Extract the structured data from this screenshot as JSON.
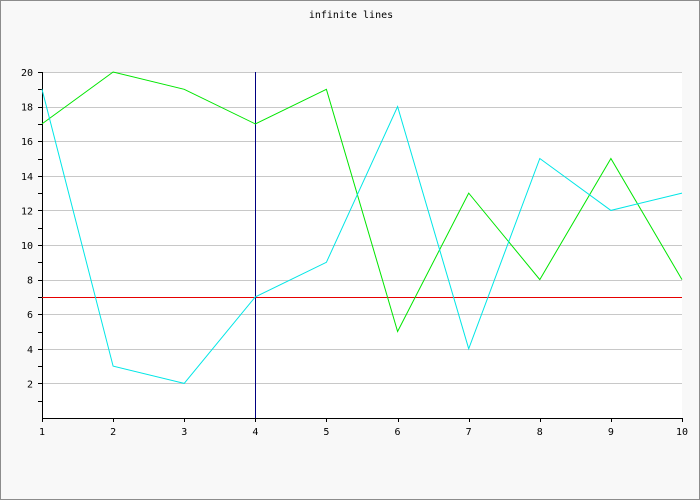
{
  "chart_data": {
    "type": "line",
    "title": "infinite lines",
    "xlabel": "",
    "ylabel": "",
    "x": [
      1,
      2,
      3,
      4,
      5,
      6,
      7,
      8,
      9,
      10
    ],
    "xlim": [
      1,
      10
    ],
    "ylim": [
      0,
      20
    ],
    "yticks": [
      2,
      4,
      6,
      8,
      10,
      12,
      14,
      16,
      18,
      20
    ],
    "grid": "horizontal",
    "legend": "none",
    "series": [
      {
        "color": "#00e600",
        "values": [
          17,
          20,
          19,
          17,
          19,
          5,
          13,
          8,
          15,
          8
        ]
      },
      {
        "color": "#00e6e6",
        "values": [
          19,
          3,
          2,
          7,
          9,
          18,
          4,
          15,
          12,
          13
        ]
      }
    ],
    "reference_lines": [
      {
        "orientation": "horizontal",
        "value": 7,
        "color": "#e60000"
      },
      {
        "orientation": "vertical",
        "value": 4,
        "color": "#000080"
      }
    ],
    "colors": {
      "background": "#f8f8f8",
      "plot_background": "#ffffff",
      "grid": "#c8c8c8",
      "axis": "#000000"
    }
  }
}
